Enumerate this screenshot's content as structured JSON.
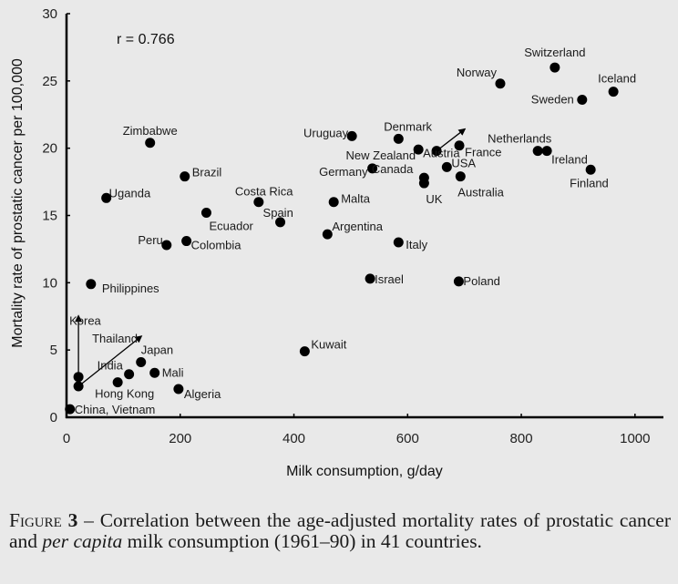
{
  "chart_data": {
    "type": "scatter",
    "title": "",
    "xlabel": "Milk consumption, g/day",
    "ylabel": "Mortality rate of prostatic cancer per 100,000",
    "xlim": [
      0,
      1050
    ],
    "ylim": [
      0,
      30
    ],
    "xticks": [
      0,
      200,
      400,
      600,
      800,
      1000
    ],
    "yticks": [
      0,
      5,
      10,
      15,
      20,
      25,
      30
    ],
    "xtick_labels": [
      "0",
      "200",
      "400",
      "600",
      "800",
      "1000"
    ],
    "ytick_labels": [
      "0",
      "5",
      "10",
      "15",
      "20",
      "25",
      "30"
    ],
    "grid": false,
    "annotation": "r = 0.766",
    "points": [
      {
        "label": "Switzerland",
        "x": 859,
        "y": 26.0
      },
      {
        "label": "Norway",
        "x": 763,
        "y": 24.8
      },
      {
        "label": "Iceland",
        "x": 962,
        "y": 24.2
      },
      {
        "label": "Sweden",
        "x": 907,
        "y": 23.6
      },
      {
        "label": "Zimbabwe",
        "x": 147,
        "y": 20.4
      },
      {
        "label": "Uruguay",
        "x": 502,
        "y": 20.9
      },
      {
        "label": "Denmark",
        "x": 584,
        "y": 20.7
      },
      {
        "label": "New Zealand",
        "x": 619,
        "y": 19.9
      },
      {
        "label": "Austria",
        "x": 651,
        "y": 19.8,
        "arrow_to": {
          "x": 700,
          "y": 21.4
        }
      },
      {
        "label": "France",
        "x": 691,
        "y": 20.2
      },
      {
        "label": "Netherlands",
        "x": 829,
        "y": 19.8
      },
      {
        "label": "Ireland",
        "x": 845,
        "y": 19.8
      },
      {
        "label": "Brazil",
        "x": 208,
        "y": 17.9
      },
      {
        "label": "Germany",
        "x": 538,
        "y": 18.5
      },
      {
        "label": "Canada",
        "x": 629,
        "y": 17.8
      },
      {
        "label": "UK",
        "x": 629,
        "y": 17.4
      },
      {
        "label": "USA",
        "x": 669,
        "y": 18.6
      },
      {
        "label": "Australia",
        "x": 693,
        "y": 17.9
      },
      {
        "label": "Finland",
        "x": 922,
        "y": 18.4
      },
      {
        "label": "Uganda",
        "x": 70,
        "y": 16.3
      },
      {
        "label": "Costa Rica",
        "x": 338,
        "y": 16.0
      },
      {
        "label": "Malta",
        "x": 470,
        "y": 16.0
      },
      {
        "label": "Ecuador",
        "x": 246,
        "y": 15.2
      },
      {
        "label": "Spain",
        "x": 376,
        "y": 14.5
      },
      {
        "label": "Argentina",
        "x": 459,
        "y": 13.6
      },
      {
        "label": "Peru",
        "x": 176,
        "y": 12.8
      },
      {
        "label": "Colombia",
        "x": 211,
        "y": 13.1
      },
      {
        "label": "Italy",
        "x": 584,
        "y": 13.0
      },
      {
        "label": "Israel",
        "x": 534,
        "y": 10.3
      },
      {
        "label": "Poland",
        "x": 690,
        "y": 10.1
      },
      {
        "label": "Philippines",
        "x": 43,
        "y": 9.9
      },
      {
        "label": "Kuwait",
        "x": 419,
        "y": 4.9
      },
      {
        "label": "Japan",
        "x": 131,
        "y": 4.1
      },
      {
        "label": "Mali",
        "x": 155,
        "y": 3.3
      },
      {
        "label": "India",
        "x": 110,
        "y": 3.2
      },
      {
        "label": "Hong Kong",
        "x": 90,
        "y": 2.6
      },
      {
        "label": "Algeria",
        "x": 197,
        "y": 2.1
      },
      {
        "label": "Korea",
        "x": 21,
        "y": 3.0,
        "arrow_to": {
          "x": 21,
          "y": 7.5
        }
      },
      {
        "label": "Thailand",
        "x": 21,
        "y": 2.3,
        "arrow_to": {
          "x": 131,
          "y": 6.0
        }
      },
      {
        "label": "China, Vietnam",
        "x": 6,
        "y": 0.6
      }
    ]
  },
  "caption": {
    "figure_label": "Figure",
    "figure_number": "3",
    "dash": " – ",
    "text_1": "Correlation between the age-adjusted mortality rates of prostatic cancer and ",
    "text_italic": "per capita",
    "text_2": " milk consumption (1961–90) in 41 countries."
  }
}
